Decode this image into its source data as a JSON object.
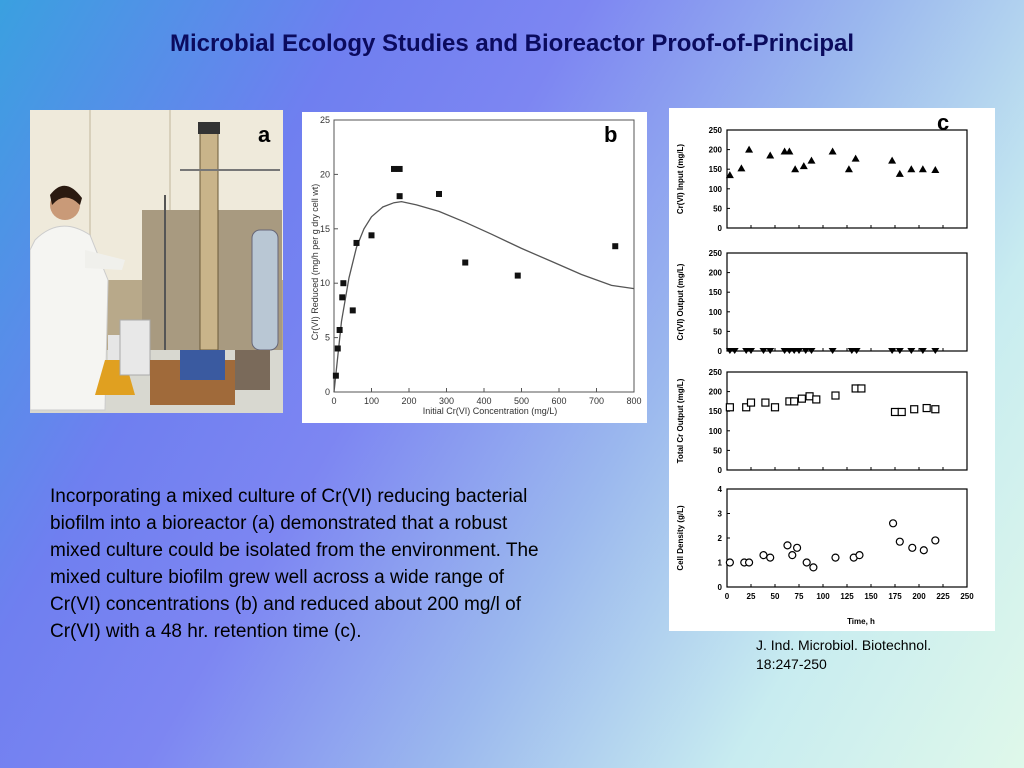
{
  "title": "Microbial Ecology Studies and Bioreactor Proof-of-Principal",
  "panel_a": {
    "letter": "a"
  },
  "panel_b": {
    "letter": "b"
  },
  "panel_c": {
    "letter": "c"
  },
  "body_text": "Incorporating a mixed culture of Cr(VI)  reducing bacterial biofilm into a bioreactor (a) demonstrated that a robust mixed culture could be isolated from the environment. The mixed culture biofilm grew well across  a wide range of Cr(VI) concentrations (b) and reduced about 200 mg/l of Cr(VI) with a 48 hr. retention time (c).",
  "citation": {
    "line1": "J. Ind. Microbiol. Biotechnol.",
    "line2": "18:247-250"
  },
  "chart_data": [
    {
      "type": "scatter",
      "panel": "b",
      "xlabel": "Initial Cr(VI) Concentration (mg/L)",
      "ylabel": "Cr(VI) Reduced (mg/h per g dry cell wt)",
      "xlim": [
        0,
        800
      ],
      "ylim": [
        0,
        25
      ],
      "xticks": [
        0,
        100,
        200,
        300,
        400,
        500,
        600,
        700,
        800
      ],
      "yticks": [
        0,
        5,
        10,
        15,
        20,
        25
      ],
      "points": [
        [
          5,
          1.5
        ],
        [
          10,
          4
        ],
        [
          15,
          5.7
        ],
        [
          22,
          8.7
        ],
        [
          25,
          10
        ],
        [
          50,
          7.5
        ],
        [
          60,
          13.7
        ],
        [
          100,
          14.4
        ],
        [
          160,
          20.5
        ],
        [
          175,
          20.5
        ],
        [
          175,
          18
        ],
        [
          280,
          18.2
        ],
        [
          350,
          11.9
        ],
        [
          490,
          10.7
        ],
        [
          750,
          13.4
        ]
      ],
      "curve": [
        [
          0,
          0
        ],
        [
          20,
          6.5
        ],
        [
          40,
          10.5
        ],
        [
          60,
          13.3
        ],
        [
          80,
          15.0
        ],
        [
          100,
          16.1
        ],
        [
          130,
          17.0
        ],
        [
          160,
          17.4
        ],
        [
          180,
          17.5
        ],
        [
          220,
          17.2
        ],
        [
          280,
          16.6
        ],
        [
          350,
          15.6
        ],
        [
          420,
          14.5
        ],
        [
          500,
          13.2
        ],
        [
          580,
          12.0
        ],
        [
          660,
          10.8
        ],
        [
          740,
          9.8
        ],
        [
          800,
          9.5
        ]
      ]
    },
    {
      "type": "scatter",
      "panel": "c",
      "xlabel": "Time, h",
      "xlim": [
        0,
        250
      ],
      "xticks": [
        0,
        25,
        50,
        75,
        100,
        125,
        150,
        175,
        200,
        225,
        250
      ],
      "subplots": [
        {
          "ylabel": "Cr(VI) Input (mg/L)",
          "ylim": [
            0,
            250
          ],
          "yticks": [
            0,
            50,
            100,
            150,
            200,
            250
          ],
          "marker": "triangle-up",
          "points": [
            [
              3,
              135
            ],
            [
              15,
              152
            ],
            [
              23,
              200
            ],
            [
              45,
              185
            ],
            [
              60,
              195
            ],
            [
              65,
              195
            ],
            [
              71,
              150
            ],
            [
              80,
              158
            ],
            [
              88,
              172
            ],
            [
              110,
              195
            ],
            [
              127,
              150
            ],
            [
              134,
              177
            ],
            [
              172,
              172
            ],
            [
              180,
              138
            ],
            [
              192,
              150
            ],
            [
              204,
              150
            ],
            [
              217,
              148
            ]
          ]
        },
        {
          "ylabel": "Cr(VI) Output (mg/L)",
          "ylim": [
            0,
            250
          ],
          "yticks": [
            0,
            50,
            100,
            150,
            200,
            250
          ],
          "marker": "triangle-down",
          "points": [
            [
              3,
              0
            ],
            [
              8,
              0
            ],
            [
              20,
              0
            ],
            [
              25,
              0
            ],
            [
              38,
              0
            ],
            [
              45,
              0
            ],
            [
              60,
              0
            ],
            [
              65,
              0
            ],
            [
              70,
              0
            ],
            [
              75,
              0
            ],
            [
              82,
              0
            ],
            [
              88,
              0
            ],
            [
              110,
              0
            ],
            [
              130,
              0
            ],
            [
              135,
              0
            ],
            [
              172,
              0
            ],
            [
              180,
              0
            ],
            [
              192,
              0
            ],
            [
              204,
              0
            ],
            [
              217,
              0
            ]
          ]
        },
        {
          "ylabel": "Total Cr Output (mg/L)",
          "ylim": [
            0,
            250
          ],
          "yticks": [
            0,
            50,
            100,
            150,
            200,
            250
          ],
          "marker": "square",
          "points": [
            [
              3,
              160
            ],
            [
              20,
              160
            ],
            [
              25,
              172
            ],
            [
              40,
              172
            ],
            [
              50,
              160
            ],
            [
              65,
              175
            ],
            [
              70,
              175
            ],
            [
              78,
              182
            ],
            [
              86,
              188
            ],
            [
              93,
              180
            ],
            [
              113,
              190
            ],
            [
              134,
              208
            ],
            [
              140,
              208
            ],
            [
              175,
              148
            ],
            [
              182,
              148
            ],
            [
              195,
              155
            ],
            [
              208,
              158
            ],
            [
              217,
              155
            ]
          ]
        },
        {
          "ylabel": "Cell Density (g/L)",
          "ylim": [
            0,
            4
          ],
          "yticks": [
            0,
            1,
            2,
            3,
            4
          ],
          "marker": "circle",
          "points": [
            [
              3,
              1.0
            ],
            [
              18,
              1.0
            ],
            [
              23,
              1.0
            ],
            [
              38,
              1.3
            ],
            [
              45,
              1.2
            ],
            [
              63,
              1.7
            ],
            [
              68,
              1.3
            ],
            [
              73,
              1.6
            ],
            [
              83,
              1.0
            ],
            [
              90,
              0.8
            ],
            [
              113,
              1.2
            ],
            [
              132,
              1.2
            ],
            [
              138,
              1.3
            ],
            [
              173,
              2.6
            ],
            [
              180,
              1.85
            ],
            [
              193,
              1.6
            ],
            [
              205,
              1.5
            ],
            [
              217,
              1.9
            ]
          ]
        }
      ]
    }
  ]
}
